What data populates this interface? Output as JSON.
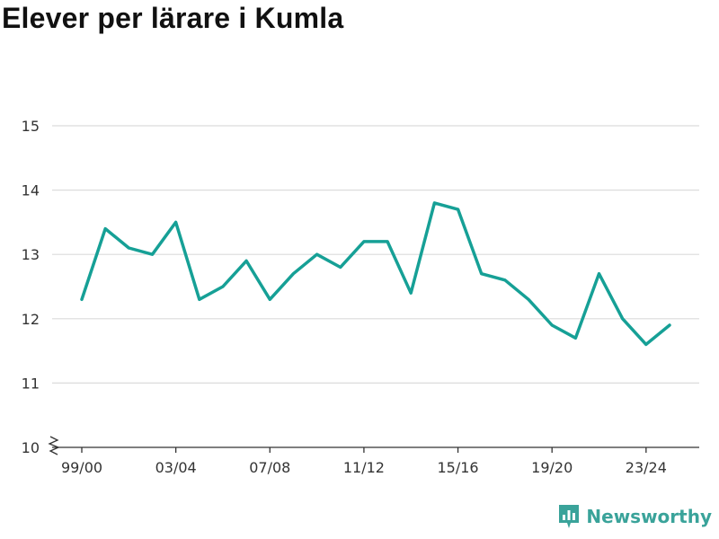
{
  "title": "Elever per lärare i Kumla",
  "brand": {
    "name": "Newsworthy",
    "color": "#3aa39a"
  },
  "chart_data": {
    "type": "line",
    "title": "Elever per lärare i Kumla",
    "xlabel": "",
    "ylabel": "",
    "ylim": [
      10,
      15
    ],
    "yticks": [
      10,
      11,
      12,
      13,
      14,
      15
    ],
    "y_axis_break": true,
    "grid": true,
    "line_color": "#16a096",
    "x_tick_labels": [
      "99/00",
      "03/04",
      "07/08",
      "11/12",
      "15/16",
      "19/20",
      "23/24"
    ],
    "categories": [
      "99/00",
      "00/01",
      "01/02",
      "02/03",
      "03/04",
      "04/05",
      "05/06",
      "06/07",
      "07/08",
      "08/09",
      "09/10",
      "10/11",
      "11/12",
      "12/13",
      "13/14",
      "14/15",
      "15/16",
      "16/17",
      "17/18",
      "18/19",
      "19/20",
      "20/21",
      "21/22",
      "22/23",
      "23/24",
      "24/25"
    ],
    "series": [
      {
        "values": [
          12.3,
          13.4,
          13.1,
          13.0,
          13.5,
          12.3,
          12.5,
          12.9,
          12.3,
          12.7,
          13.0,
          12.8,
          13.2,
          13.2,
          12.4,
          13.8,
          13.7,
          12.7,
          12.6,
          12.3,
          11.9,
          11.7,
          12.7,
          12.0,
          11.6,
          11.9
        ]
      }
    ]
  }
}
